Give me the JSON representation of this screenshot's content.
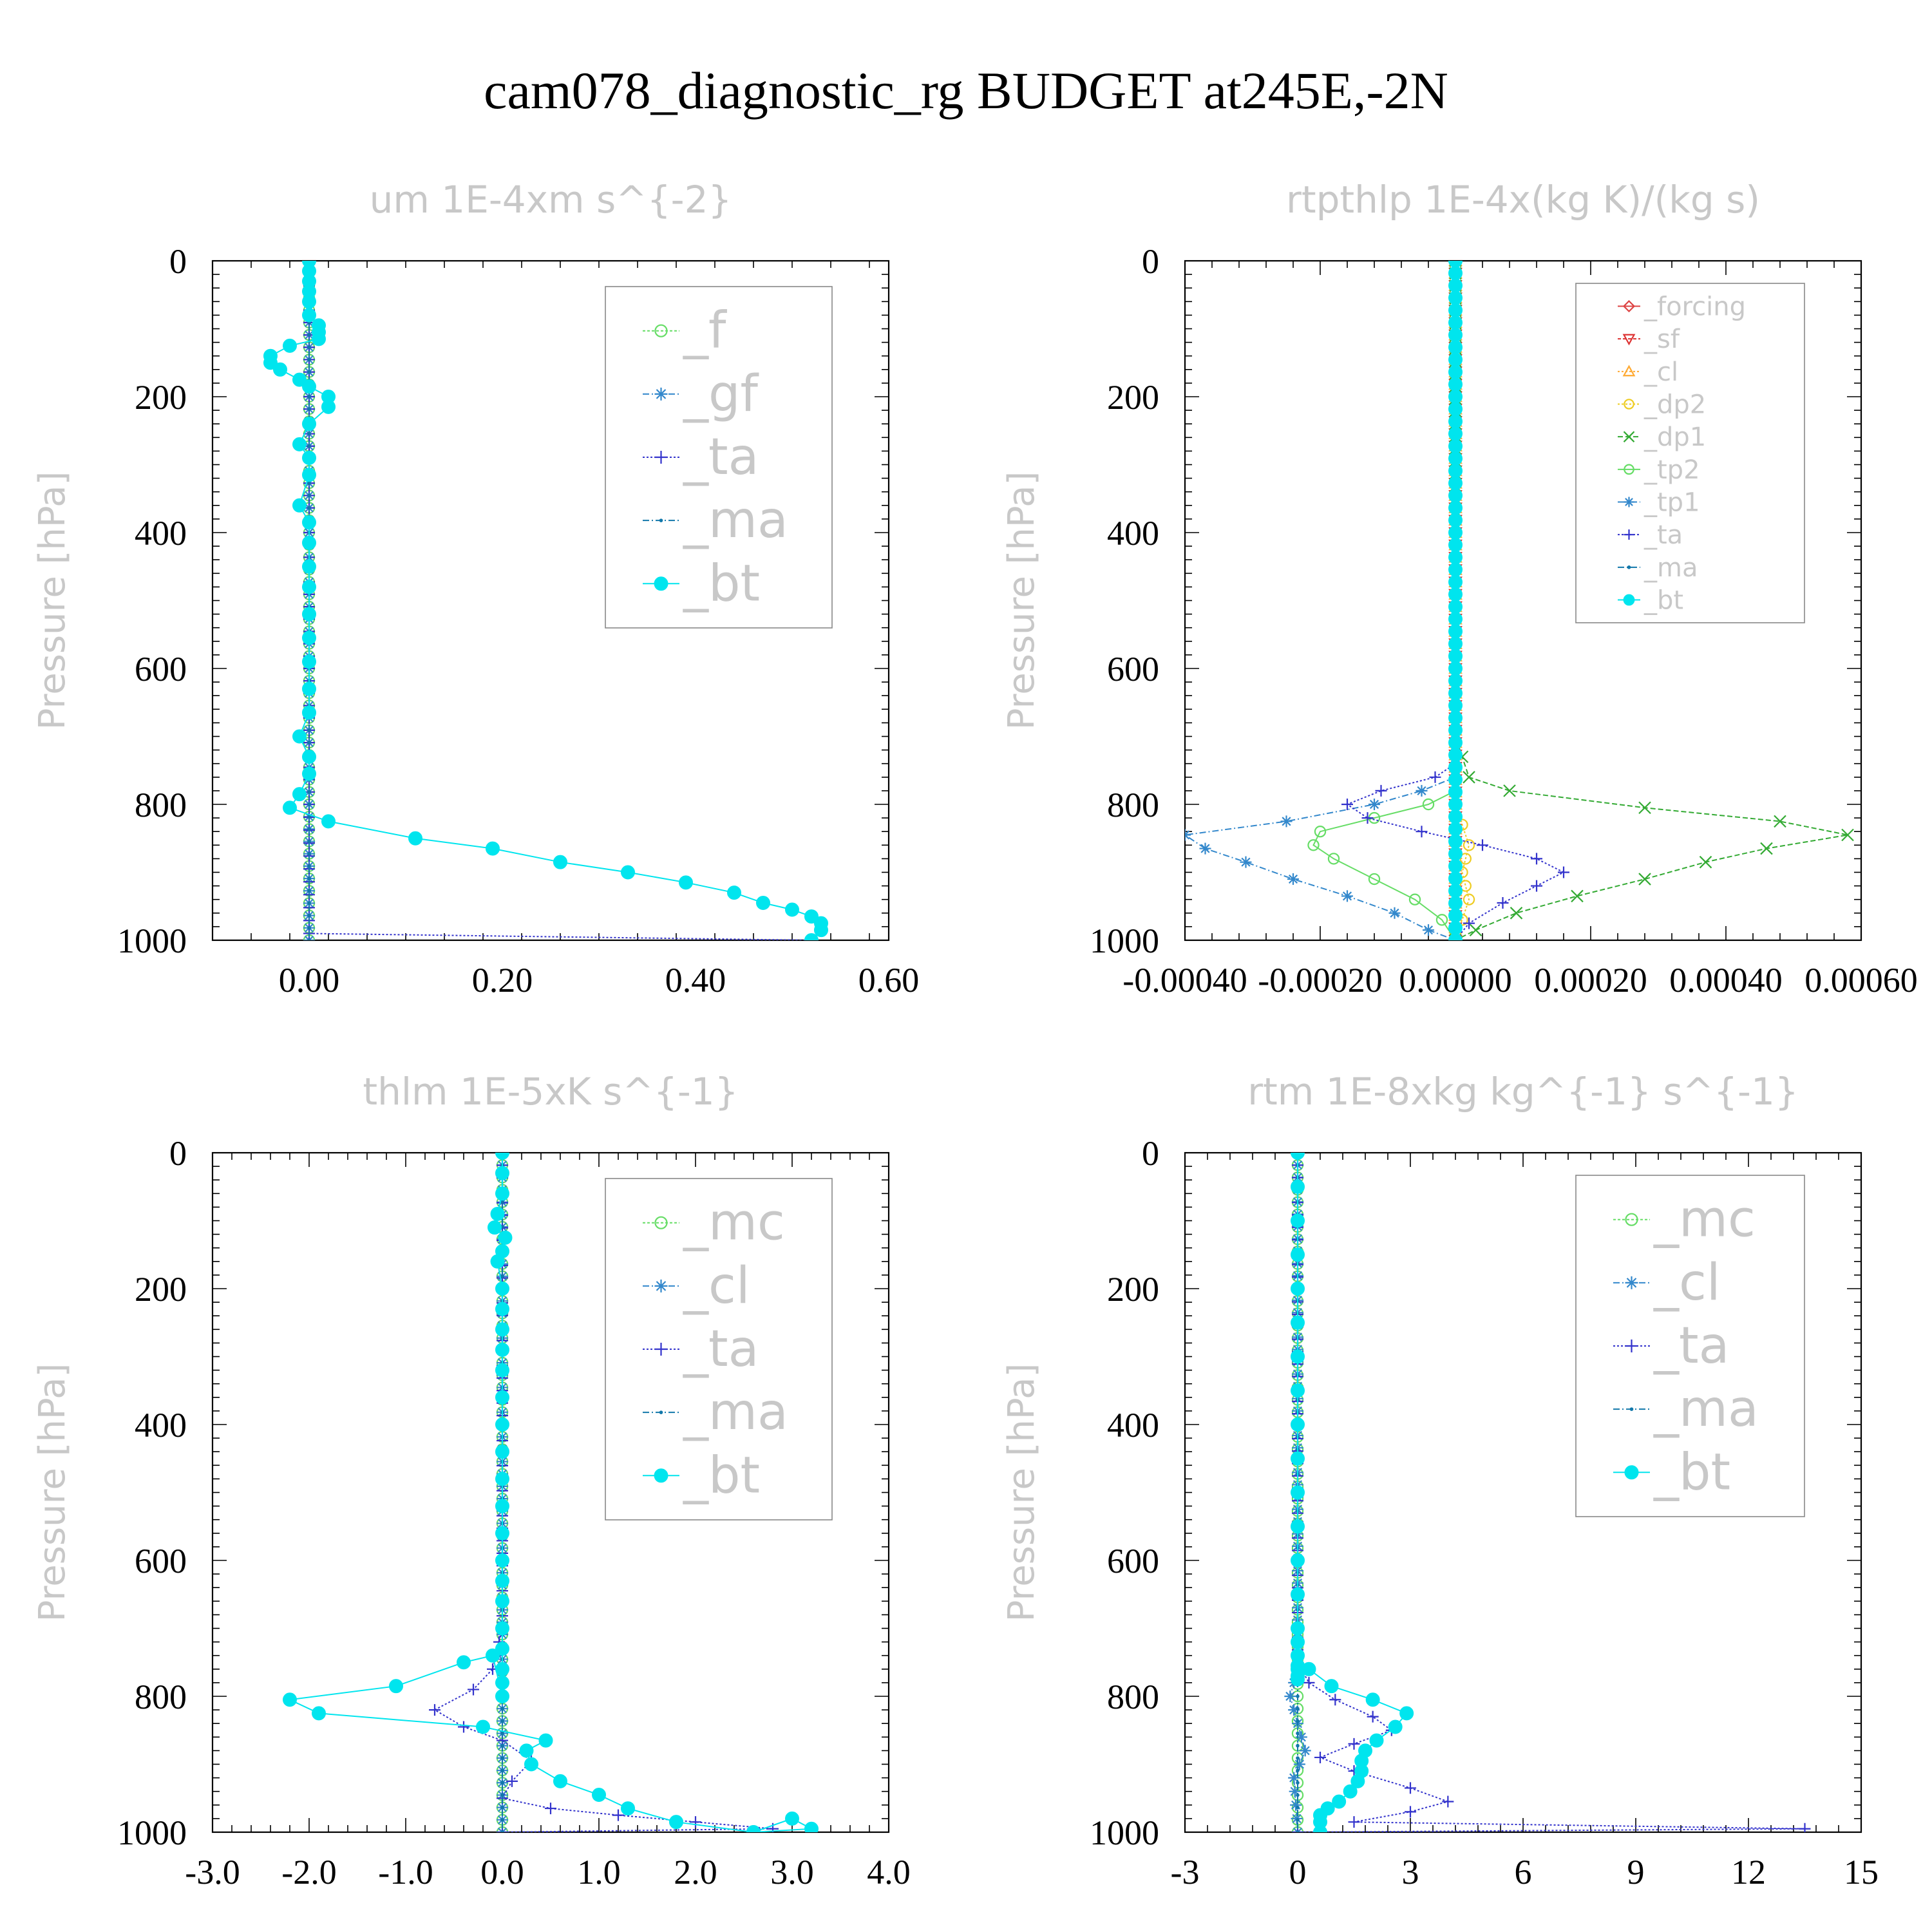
{
  "figure_title": "cam078_diagnostic_rg  BUDGET at245E,-2N",
  "chart_data": [
    {
      "type": "line",
      "title": "um   1E-4xm s^{-2}",
      "ylabel": "Pressure [hPa]",
      "xlabel": "",
      "xlim": [
        -0.1,
        0.6
      ],
      "ylim": [
        1000,
        0
      ],
      "xticks": [
        "0.00",
        "0.20",
        "0.40",
        "0.60"
      ],
      "xtick_values": [
        0.0,
        0.2,
        0.4,
        0.6
      ],
      "yticks": [
        0,
        200,
        400,
        600,
        800,
        1000
      ],
      "legend_position": "upper-right",
      "legend_font": "large",
      "series": [
        {
          "name": "_f",
          "color": "#66dd66",
          "marker": "circle-open",
          "dash": "4,3",
          "x": [
            0.0,
            0.0
          ],
          "y": [
            0,
            1000
          ]
        },
        {
          "name": "_gf",
          "color": "#3388cc",
          "marker": "star",
          "dash": "10,4,2,4",
          "x": [
            0.0,
            0.0
          ],
          "y": [
            0,
            1000
          ]
        },
        {
          "name": "_ta",
          "color": "#3333cc",
          "marker": "plus",
          "dash": "3,3",
          "x": [
            0.0,
            0.0,
            0.0,
            0.0,
            0.0,
            0.0,
            0.52
          ],
          "y": [
            0,
            200,
            400,
            600,
            800,
            990,
            1000
          ]
        },
        {
          "name": "_ma",
          "color": "#1177aa",
          "marker": "dot",
          "dash": "10,4,2,4",
          "x": [
            0.0,
            0.0
          ],
          "y": [
            0,
            1000
          ]
        },
        {
          "name": "_bt",
          "color": "#00e5ee",
          "marker": "circle-filled",
          "dash": "",
          "x": [
            0.0,
            0.0,
            0.0,
            0.0,
            0.0,
            0.0,
            0.01,
            0.01,
            0.01,
            -0.02,
            -0.04,
            -0.04,
            -0.03,
            -0.01,
            0.0,
            0.02,
            0.02,
            0.0,
            -0.01,
            0.0,
            0.0,
            -0.01,
            0.0,
            0.0,
            0.0,
            0.0,
            0.0,
            0.0,
            0.0,
            0.0,
            0.0,
            -0.01,
            0.0,
            0.0,
            -0.01,
            -0.02,
            0.02,
            0.11,
            0.19,
            0.26,
            0.33,
            0.39,
            0.44,
            0.47,
            0.5,
            0.52,
            0.53,
            0.53,
            0.52
          ],
          "y": [
            0,
            15,
            30,
            45,
            60,
            80,
            95,
            105,
            115,
            125,
            140,
            150,
            160,
            175,
            185,
            200,
            215,
            240,
            270,
            290,
            315,
            360,
            385,
            415,
            450,
            480,
            520,
            555,
            590,
            630,
            665,
            700,
            730,
            755,
            785,
            805,
            825,
            850,
            865,
            885,
            900,
            915,
            930,
            945,
            955,
            965,
            975,
            985,
            1000
          ]
        }
      ]
    },
    {
      "type": "line",
      "title": "rtpthlp   1E-4x(kg K)/(kg s)",
      "ylabel": "Pressure [hPa]",
      "xlabel": "",
      "xlim": [
        -0.0004,
        0.0006
      ],
      "ylim": [
        1000,
        0
      ],
      "xticks": [
        "-0.00040",
        "-0.00020",
        "0.00000",
        "0.00020",
        "0.00040",
        "0.00060"
      ],
      "xtick_values": [
        -0.0004,
        -0.0002,
        0.0,
        0.0002,
        0.0004,
        0.0006
      ],
      "yticks": [
        0,
        200,
        400,
        600,
        800,
        1000
      ],
      "legend_position": "upper-right",
      "legend_font": "small",
      "series": [
        {
          "name": "_forcing",
          "color": "#dd4444",
          "marker": "diamond-open",
          "dash": "",
          "x": [
            0.0,
            0.0
          ],
          "y": [
            0,
            1000
          ]
        },
        {
          "name": "_sf",
          "color": "#dd3333",
          "marker": "triangle-down-open",
          "dash": "5,3",
          "x": [
            0.0,
            0.0
          ],
          "y": [
            0,
            1000
          ]
        },
        {
          "name": "_cl",
          "color": "#ffaa33",
          "marker": "triangle-up-open",
          "dash": "3,3",
          "x": [
            0.0,
            0.0
          ],
          "y": [
            0,
            1000
          ]
        },
        {
          "name": "_dp2",
          "color": "#eecc22",
          "marker": "circle-open",
          "dash": "3,3",
          "x": [
            0.0,
            0.0,
            1e-05,
            2e-05,
            1e-05,
            2e-05,
            1e-05,
            0.0,
            0.0
          ],
          "y": [
            0,
            800,
            830,
            860,
            900,
            940,
            970,
            990,
            1000
          ]
        },
        {
          "name": "_dp1",
          "color": "#33aa33",
          "marker": "x",
          "dash": "8,4",
          "x": [
            0.0,
            0.0,
            1e-05,
            2e-05,
            8e-05,
            0.00028,
            0.00048,
            0.00058,
            0.00046,
            0.00037,
            0.00028,
            0.00018,
            9e-05,
            3e-05,
            0.0
          ],
          "y": [
            0,
            700,
            730,
            760,
            780,
            805,
            825,
            845,
            865,
            885,
            910,
            935,
            960,
            985,
            1000
          ]
        },
        {
          "name": "_tp2",
          "color": "#66dd66",
          "marker": "circle-open",
          "dash": "",
          "x": [
            0.0,
            0.0,
            -4e-05,
            -0.00012,
            -0.0002,
            -0.00021,
            -0.00018,
            -0.00012,
            -6e-05,
            -2e-05,
            0.0
          ],
          "y": [
            0,
            780,
            800,
            820,
            840,
            860,
            880,
            910,
            940,
            970,
            1000
          ]
        },
        {
          "name": "_tp1",
          "color": "#3388cc",
          "marker": "star",
          "dash": "10,4,2,4",
          "x": [
            0.0,
            0.0,
            -5e-05,
            -0.00012,
            -0.00025,
            -0.0004,
            -0.00037,
            -0.00031,
            -0.00024,
            -0.00016,
            -9e-05,
            -4e-05,
            0.0
          ],
          "y": [
            0,
            760,
            780,
            800,
            825,
            845,
            865,
            885,
            910,
            935,
            960,
            985,
            1000
          ]
        },
        {
          "name": "_ta",
          "color": "#3333cc",
          "marker": "plus",
          "dash": "3,3",
          "x": [
            0.0,
            0.0,
            -3e-05,
            -0.00011,
            -0.00016,
            -0.00013,
            -5e-05,
            4e-05,
            0.00012,
            0.00016,
            0.00012,
            7e-05,
            2e-05,
            0.0
          ],
          "y": [
            0,
            740,
            760,
            780,
            800,
            820,
            840,
            860,
            880,
            900,
            920,
            945,
            975,
            1000
          ]
        },
        {
          "name": "_ma",
          "color": "#1177aa",
          "marker": "dot",
          "dash": "10,4,2,4",
          "x": [
            0.0,
            0.0
          ],
          "y": [
            0,
            1000
          ]
        },
        {
          "name": "_bt",
          "color": "#00e5ee",
          "marker": "circle-filled",
          "dash": "",
          "x": [
            0.0,
            0.0
          ],
          "y": [
            0,
            1000
          ]
        }
      ]
    },
    {
      "type": "line",
      "title": "thlm   1E-5xK s^{-1}",
      "ylabel": "Pressure [hPa]",
      "xlabel": "",
      "xlim": [
        -3.0,
        4.0
      ],
      "ylim": [
        1000,
        0
      ],
      "xticks": [
        "-3.0",
        "-2.0",
        "-1.0",
        "0.0",
        "1.0",
        "2.0",
        "3.0",
        "4.0"
      ],
      "xtick_values": [
        -3.0,
        -2.0,
        -1.0,
        0.0,
        1.0,
        2.0,
        3.0,
        4.0
      ],
      "yticks": [
        0,
        200,
        400,
        600,
        800,
        1000
      ],
      "legend_position": "upper-right",
      "legend_font": "large",
      "series": [
        {
          "name": "_mc",
          "color": "#66dd66",
          "marker": "circle-open",
          "dash": "4,3",
          "x": [
            0.0,
            0.0
          ],
          "y": [
            0,
            1000
          ]
        },
        {
          "name": "_cl",
          "color": "#3388cc",
          "marker": "star",
          "dash": "10,4,2,4",
          "x": [
            0.0,
            0.0
          ],
          "y": [
            0,
            1000
          ]
        },
        {
          "name": "_ta",
          "color": "#3333cc",
          "marker": "plus",
          "dash": "3,3",
          "x": [
            0.0,
            0.0,
            -0.1,
            -0.3,
            -0.7,
            -0.4,
            0.0,
            0.3,
            0.1,
            0.0,
            0.5,
            1.2,
            2.0,
            2.8,
            0.0
          ],
          "y": [
            0,
            700,
            760,
            790,
            820,
            845,
            865,
            895,
            925,
            950,
            965,
            975,
            985,
            995,
            1000
          ]
        },
        {
          "name": "_ma",
          "color": "#1177aa",
          "marker": "dot",
          "dash": "10,4,2,4",
          "x": [
            0.0,
            0.0
          ],
          "y": [
            0,
            1000
          ]
        },
        {
          "name": "_bt",
          "color": "#00e5ee",
          "marker": "circle-filled",
          "dash": "",
          "x": [
            0.0,
            0.0,
            0.0,
            -0.05,
            -0.08,
            0.03,
            0.0,
            -0.05,
            0.0,
            0.0,
            0.0,
            0.0,
            0.0,
            0.0,
            0.0,
            0.0,
            0.0,
            0.0,
            0.0,
            0.0,
            0.0,
            0.0,
            0.0,
            0.0,
            0.0,
            0.0,
            0.0,
            -0.1,
            -0.4,
            -1.1,
            -2.2,
            -1.9,
            -0.2,
            0.45,
            0.25,
            0.3,
            0.6,
            1.0,
            1.3,
            1.8,
            2.6,
            3.0,
            3.2,
            2.6
          ],
          "y": [
            0,
            30,
            60,
            90,
            110,
            125,
            145,
            160,
            200,
            230,
            260,
            290,
            320,
            360,
            400,
            440,
            480,
            520,
            560,
            600,
            630,
            660,
            700,
            730,
            760,
            780,
            800,
            740,
            750,
            785,
            805,
            825,
            845,
            865,
            880,
            900,
            925,
            945,
            965,
            985,
            1000,
            980,
            995,
            1000
          ]
        }
      ]
    },
    {
      "type": "line",
      "title": "rtm   1E-8xkg kg^{-1} s^{-1}",
      "ylabel": "Pressure [hPa]",
      "xlabel": "",
      "xlim": [
        -3,
        15
      ],
      "ylim": [
        1000,
        0
      ],
      "xticks": [
        "-3",
        "0",
        "3",
        "6",
        "9",
        "12",
        "15"
      ],
      "xtick_values": [
        -3,
        0,
        3,
        6,
        9,
        12,
        15
      ],
      "yticks": [
        0,
        200,
        400,
        600,
        800,
        1000
      ],
      "legend_position": "upper-right",
      "legend_font": "large",
      "series": [
        {
          "name": "_mc",
          "color": "#66dd66",
          "marker": "circle-open",
          "dash": "4,3",
          "x": [
            0.0,
            0.0
          ],
          "y": [
            0,
            1000
          ]
        },
        {
          "name": "_cl",
          "color": "#3388cc",
          "marker": "star",
          "dash": "10,4,2,4",
          "x": [
            0.0,
            0.0,
            -0.2,
            0.2,
            -0.1,
            0.0
          ],
          "y": [
            0,
            760,
            800,
            880,
            920,
            1000
          ]
        },
        {
          "name": "_ta",
          "color": "#3333cc",
          "marker": "plus",
          "dash": "3,3",
          "x": [
            0.0,
            0.0,
            0.3,
            1.0,
            2.0,
            2.5,
            1.5,
            0.6,
            1.5,
            3.0,
            4.0,
            3.0,
            1.5,
            13.5,
            0.0
          ],
          "y": [
            0,
            750,
            780,
            805,
            830,
            850,
            870,
            890,
            910,
            935,
            955,
            970,
            985,
            995,
            1000
          ]
        },
        {
          "name": "_ma",
          "color": "#1177aa",
          "marker": "dot",
          "dash": "10,4,2,4",
          "x": [
            0.0,
            0.0
          ],
          "y": [
            0,
            1000
          ]
        },
        {
          "name": "_bt",
          "color": "#00e5ee",
          "marker": "circle-filled",
          "dash": "",
          "x": [
            0.0,
            0.0,
            0.0,
            0.0,
            0.0,
            0.0,
            0.0,
            0.0,
            0.0,
            0.0,
            0.0,
            0.0,
            0.0,
            0.0,
            0.0,
            0.0,
            0.0,
            0.0,
            0.0,
            0.0,
            0.0,
            0.3,
            0.9,
            2.0,
            2.9,
            2.6,
            2.1,
            1.8,
            1.7,
            1.7,
            1.6,
            1.4,
            1.1,
            0.8,
            0.6,
            0.6,
            0.6
          ],
          "y": [
            0,
            50,
            100,
            150,
            200,
            250,
            300,
            350,
            400,
            450,
            500,
            550,
            600,
            650,
            700,
            720,
            740,
            755,
            760,
            770,
            775,
            760,
            785,
            805,
            825,
            845,
            865,
            880,
            895,
            910,
            925,
            940,
            955,
            965,
            975,
            985,
            1000
          ]
        }
      ]
    }
  ]
}
